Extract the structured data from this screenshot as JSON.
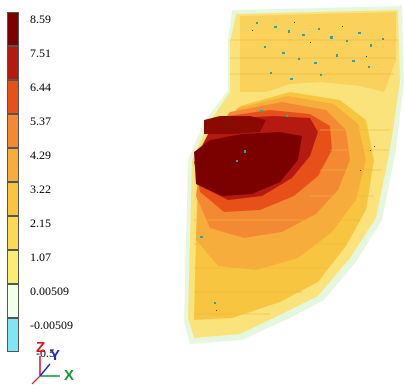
{
  "legend": {
    "labels": [
      "8.59",
      "7.51",
      "6.44",
      "5.37",
      "4.29",
      "3.22",
      "2.15",
      "1.07",
      "0.00509",
      "-0.00509",
      "-0.5"
    ],
    "colors": [
      "#7b0000",
      "#b51a10",
      "#e8501a",
      "#f38a33",
      "#f6ad3b",
      "#f8c540",
      "#f9da55",
      "#fbec74",
      "#f2ffe9",
      "#7fe6f2"
    ]
  },
  "axes": {
    "z": "Z",
    "y": "Y",
    "x": "X"
  },
  "colors": {
    "axis_z": "#e0101a",
    "axis_y": "#1a28e0",
    "axis_x": "#0e9b34"
  }
}
